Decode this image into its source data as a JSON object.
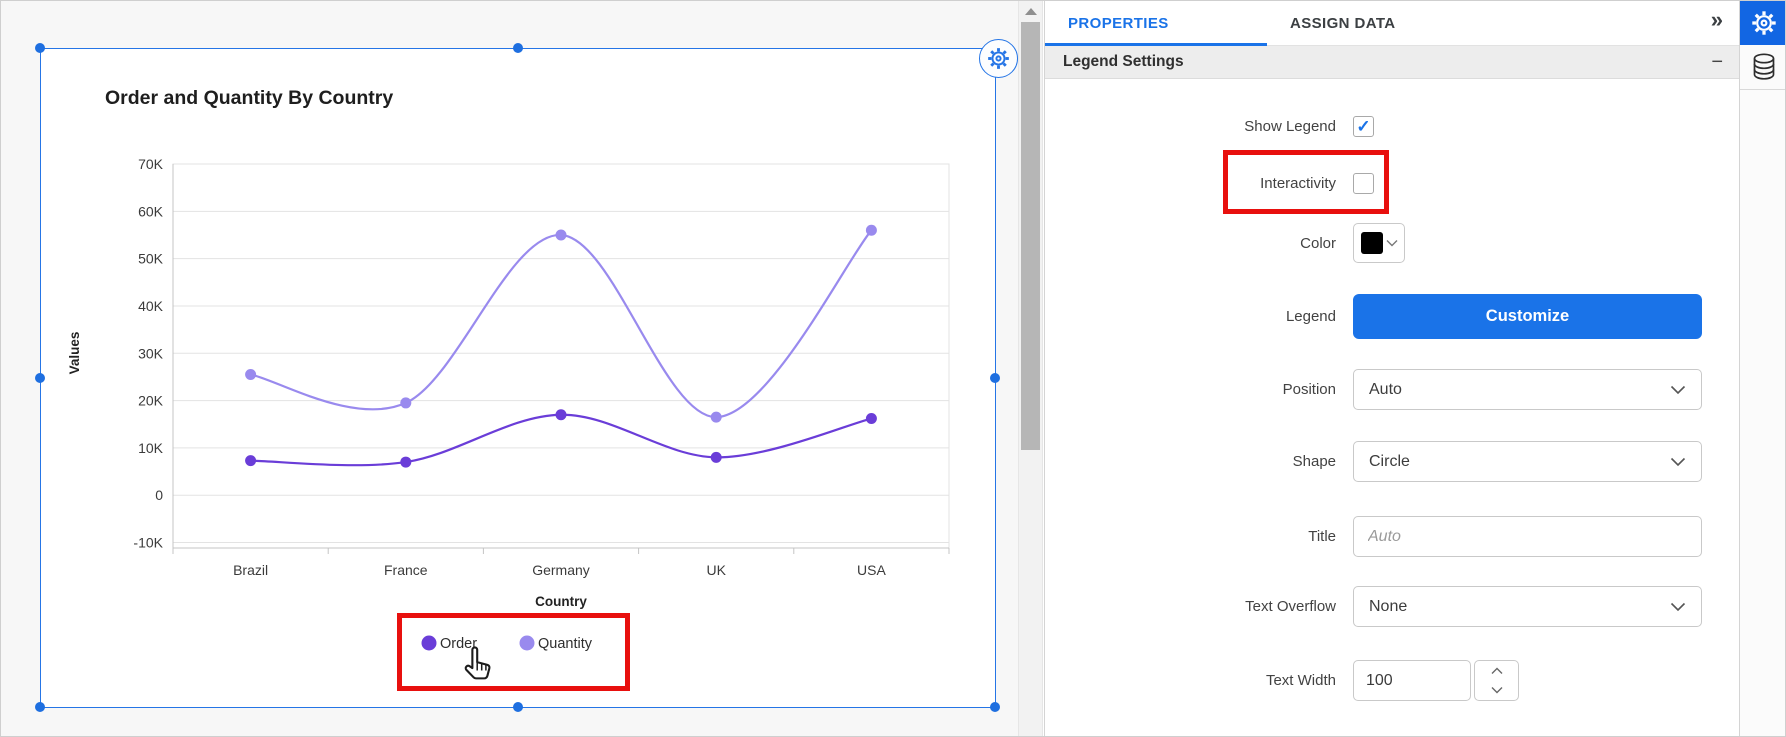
{
  "canvas": {
    "widget_title": "Order and Quantity By Country"
  },
  "chart_data": {
    "type": "line",
    "title": "Order and Quantity By Country",
    "categories": [
      "Brazil",
      "France",
      "Germany",
      "UK",
      "USA"
    ],
    "series": [
      {
        "name": "Order",
        "color": "#6a3dd8",
        "values": [
          7300,
          7000,
          17000,
          8000,
          16200
        ]
      },
      {
        "name": "Quantity",
        "color": "#998aee",
        "values": [
          25500,
          19500,
          55000,
          16500,
          56000
        ]
      }
    ],
    "xlabel": "Country",
    "ylabel": "Values",
    "ylim": [
      -10000,
      70000
    ],
    "ytick_labels": [
      "70K",
      "60K",
      "50K",
      "40K",
      "30K",
      "20K",
      "10K",
      "0",
      "-10K"
    ],
    "grid": true,
    "legend_position": "bottom",
    "marker": "circle",
    "curve": "smooth"
  },
  "panel": {
    "tabs": [
      {
        "label": "PROPERTIES",
        "active": true
      },
      {
        "label": "ASSIGN DATA",
        "active": false
      }
    ],
    "collapse_icon": "»",
    "section_title": "Legend Settings",
    "section_collapse_icon": "−",
    "rows": {
      "show_legend": {
        "label": "Show Legend",
        "checked": true
      },
      "interactivity": {
        "label": "Interactivity",
        "checked": false
      },
      "color": {
        "label": "Color",
        "value": "#000000"
      },
      "legend": {
        "label": "Legend",
        "button_label": "Customize"
      },
      "position": {
        "label": "Position",
        "value": "Auto"
      },
      "shape": {
        "label": "Shape",
        "value": "Circle"
      },
      "title": {
        "label": "Title",
        "placeholder": "Auto"
      },
      "text_overflow": {
        "label": "Text Overflow",
        "value": "None"
      },
      "text_width": {
        "label": "Text Width",
        "value": "100"
      }
    }
  },
  "icons": {
    "check": "✓"
  },
  "colors": {
    "accent": "#1a73e8",
    "selection": "#2575e6",
    "annotation_red": "#e8100e",
    "series_order": "#6a3dd8",
    "series_quantity": "#998aee"
  }
}
